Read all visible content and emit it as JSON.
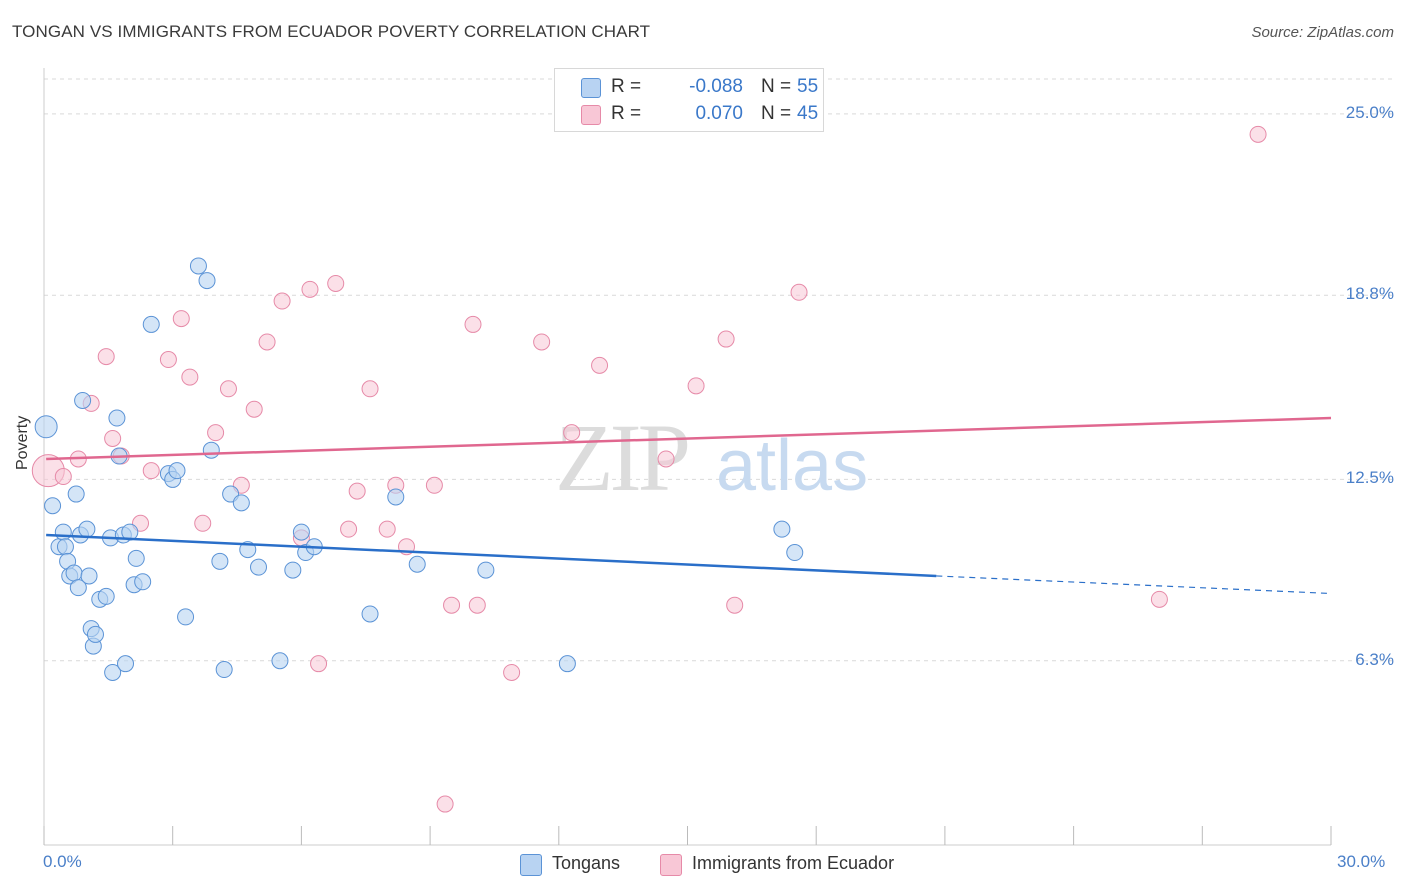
{
  "header": {
    "title": "TONGAN VS IMMIGRANTS FROM ECUADOR POVERTY CORRELATION CHART",
    "source": "Source: ZipAtlas.com"
  },
  "watermark": {
    "zip": "ZIP",
    "atlas": "atlas"
  },
  "stats": {
    "row1": {
      "r_label": "R =",
      "r_value": "-0.088",
      "n_label": "N =",
      "n_value": "55"
    },
    "row2": {
      "r_label": "R =",
      "r_value": "0.070",
      "n_label": "N =",
      "n_value": "45"
    }
  },
  "legend": {
    "series1": "Tongans",
    "series2": "Immigrants from Ecuador"
  },
  "colors": {
    "blue_fill": "#b8d3f2",
    "blue_stroke": "#5b93d6",
    "blue_line": "#2a6fc9",
    "pink_fill": "#f8c7d6",
    "pink_stroke": "#e68aa8",
    "pink_line": "#e0678f",
    "axis_text": "#4a7fc8",
    "grid": "#d9d9d9"
  },
  "chart_data": {
    "type": "scatter",
    "title": "TONGAN VS IMMIGRANTS FROM ECUADOR POVERTY CORRELATION CHART",
    "xlabel": "",
    "ylabel": "Poverty",
    "xlim": [
      0,
      30
    ],
    "ylim": [
      0,
      26.5
    ],
    "x_tick_labels": [
      "0.0%",
      "30.0%"
    ],
    "y_ticks": [
      6.3,
      12.5,
      18.8,
      25.0
    ],
    "y_tick_labels": [
      "6.3%",
      "12.5%",
      "18.8%",
      "25.0%"
    ],
    "grid": true,
    "legend_position": "bottom-center",
    "series": [
      {
        "name": "Tongans",
        "r": -0.088,
        "n": 55,
        "trend": {
          "x_start": 0.05,
          "y_start": 10.6,
          "x_end": 20.8,
          "y_end": 9.2,
          "x_dash_end": 30.0,
          "y_dash_end": 8.6
        },
        "points": [
          [
            0.05,
            14.3
          ],
          [
            0.2,
            11.6
          ],
          [
            0.35,
            10.2
          ],
          [
            0.45,
            10.7
          ],
          [
            0.5,
            10.2
          ],
          [
            0.55,
            9.7
          ],
          [
            0.6,
            9.2
          ],
          [
            0.7,
            9.3
          ],
          [
            0.75,
            12.0
          ],
          [
            0.8,
            8.8
          ],
          [
            0.85,
            10.6
          ],
          [
            0.9,
            15.2
          ],
          [
            1.0,
            10.8
          ],
          [
            1.05,
            9.2
          ],
          [
            1.1,
            7.4
          ],
          [
            1.15,
            6.8
          ],
          [
            1.2,
            7.2
          ],
          [
            1.3,
            8.4
          ],
          [
            1.45,
            8.5
          ],
          [
            1.55,
            10.5
          ],
          [
            1.6,
            5.9
          ],
          [
            1.7,
            14.6
          ],
          [
            1.75,
            13.3
          ],
          [
            1.85,
            10.6
          ],
          [
            1.9,
            6.2
          ],
          [
            2.0,
            10.7
          ],
          [
            2.1,
            8.9
          ],
          [
            2.15,
            9.8
          ],
          [
            2.3,
            9.0
          ],
          [
            2.5,
            17.8
          ],
          [
            2.9,
            12.7
          ],
          [
            3.0,
            12.5
          ],
          [
            3.1,
            12.8
          ],
          [
            3.3,
            7.8
          ],
          [
            3.6,
            19.8
          ],
          [
            3.8,
            19.3
          ],
          [
            3.9,
            13.5
          ],
          [
            4.1,
            9.7
          ],
          [
            4.2,
            6.0
          ],
          [
            4.35,
            12.0
          ],
          [
            4.6,
            11.7
          ],
          [
            4.75,
            10.1
          ],
          [
            5.0,
            9.5
          ],
          [
            5.5,
            6.3
          ],
          [
            5.8,
            9.4
          ],
          [
            6.1,
            10.0
          ],
          [
            6.0,
            10.7
          ],
          [
            6.3,
            10.2
          ],
          [
            7.6,
            7.9
          ],
          [
            8.2,
            11.9
          ],
          [
            8.7,
            9.6
          ],
          [
            10.3,
            9.4
          ],
          [
            12.2,
            6.2
          ],
          [
            17.2,
            10.8
          ],
          [
            17.5,
            10.0
          ]
        ]
      },
      {
        "name": "Immigrants from Ecuador",
        "r": 0.07,
        "n": 45,
        "trend": {
          "x_start": 0.05,
          "y_start": 13.2,
          "x_end": 30.0,
          "y_end": 14.6
        },
        "points": [
          [
            0.1,
            12.8
          ],
          [
            0.45,
            12.6
          ],
          [
            0.8,
            13.2
          ],
          [
            1.1,
            15.1
          ],
          [
            1.45,
            16.7
          ],
          [
            1.6,
            13.9
          ],
          [
            1.8,
            13.3
          ],
          [
            2.25,
            11.0
          ],
          [
            2.5,
            12.8
          ],
          [
            2.9,
            16.6
          ],
          [
            3.2,
            18.0
          ],
          [
            3.4,
            16.0
          ],
          [
            3.7,
            11.0
          ],
          [
            4.0,
            14.1
          ],
          [
            4.3,
            15.6
          ],
          [
            4.6,
            12.3
          ],
          [
            4.9,
            14.9
          ],
          [
            5.2,
            17.2
          ],
          [
            5.55,
            18.6
          ],
          [
            6.0,
            10.5
          ],
          [
            6.2,
            19.0
          ],
          [
            6.4,
            6.2
          ],
          [
            6.8,
            19.2
          ],
          [
            7.1,
            10.8
          ],
          [
            7.3,
            12.1
          ],
          [
            7.6,
            15.6
          ],
          [
            8.0,
            10.8
          ],
          [
            8.2,
            12.3
          ],
          [
            8.45,
            10.2
          ],
          [
            9.1,
            12.3
          ],
          [
            9.35,
            1.4
          ],
          [
            9.5,
            8.2
          ],
          [
            10.0,
            17.8
          ],
          [
            10.1,
            8.2
          ],
          [
            10.9,
            5.9
          ],
          [
            11.6,
            17.2
          ],
          [
            12.3,
            14.1
          ],
          [
            12.95,
            16.4
          ],
          [
            14.5,
            13.2
          ],
          [
            15.2,
            15.7
          ],
          [
            15.9,
            17.3
          ],
          [
            16.1,
            8.2
          ],
          [
            17.6,
            18.9
          ],
          [
            26.0,
            8.4
          ],
          [
            28.3,
            24.3
          ]
        ]
      }
    ]
  }
}
